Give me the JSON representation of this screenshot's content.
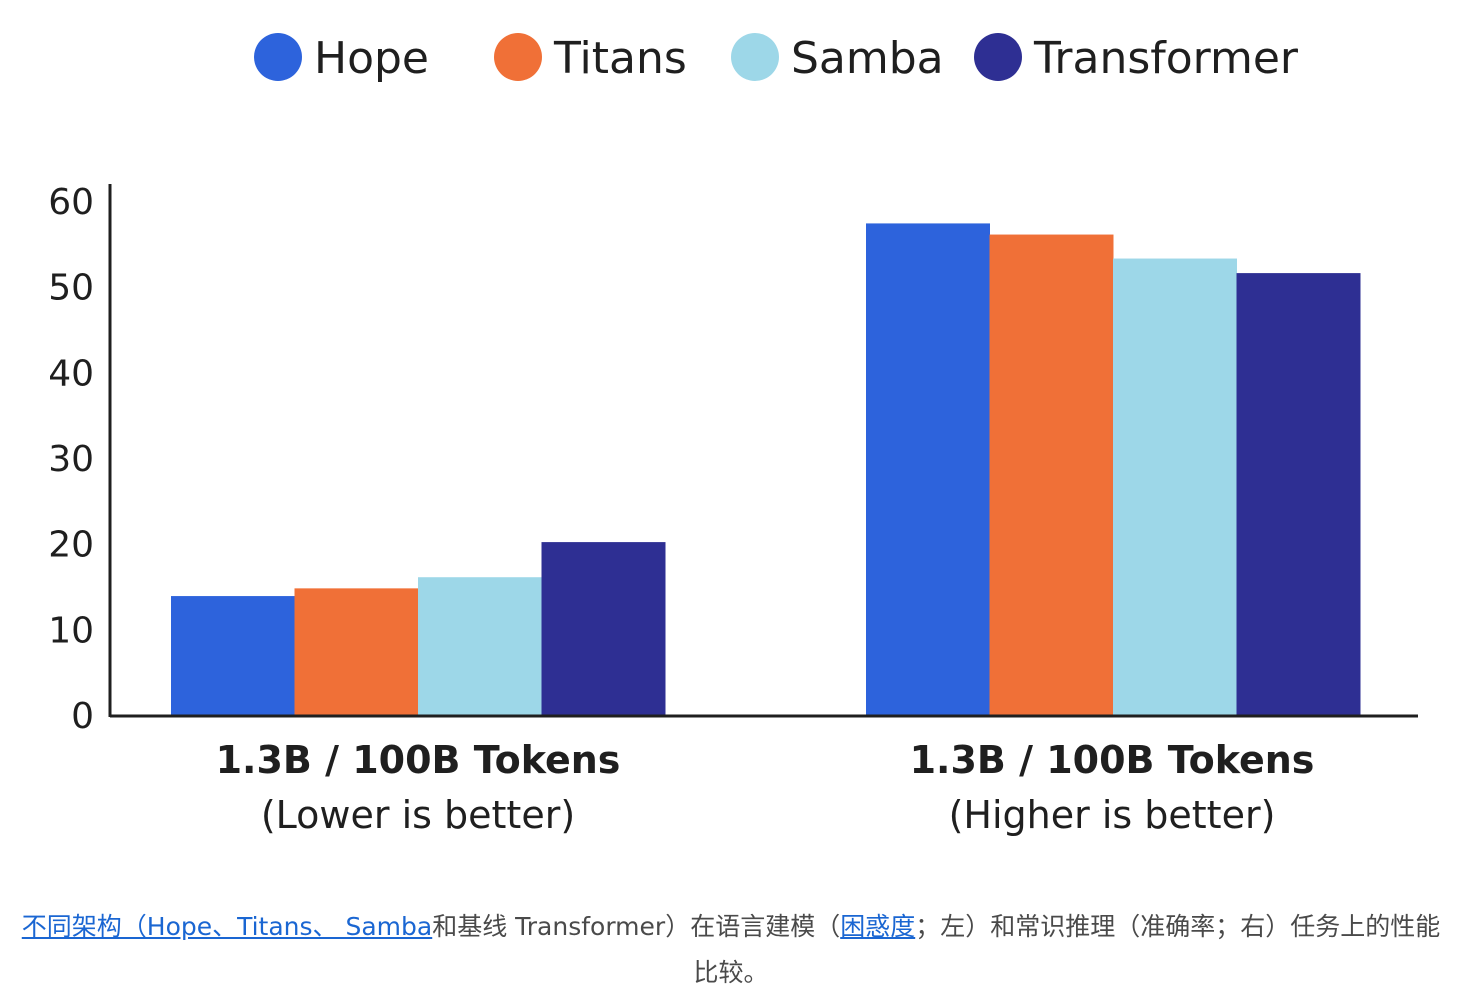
{
  "chart_data": {
    "type": "bar",
    "categories": [
      {
        "title": "1.3B / 100B Tokens",
        "subtitle": "(Lower is better)"
      },
      {
        "title": "1.3B / 100B Tokens",
        "subtitle": "(Higher is better)"
      }
    ],
    "series": [
      {
        "name": "Hope",
        "color": "#2d63dc",
        "values": [
          14.0,
          57.5
        ]
      },
      {
        "name": "Titans",
        "color": "#f07037",
        "values": [
          14.9,
          56.2
        ]
      },
      {
        "name": "Samba",
        "color": "#9dd7e8",
        "values": [
          16.2,
          53.4
        ]
      },
      {
        "name": "Transformer",
        "color": "#2e2f93",
        "values": [
          20.3,
          51.7
        ]
      }
    ],
    "yticks": [
      "0",
      "10",
      "20",
      "30",
      "40",
      "50",
      "60"
    ],
    "ylim": [
      0,
      60
    ],
    "legend_position": "top",
    "grid": false
  },
  "caption": {
    "link_architectures": "不同架构（Hope、Titans、 Samba",
    "text_baseline": "和基线 Transformer）在语言建模（",
    "link_perplexity": "困惑度",
    "text_rest": "；左）和常识推理（准确率；右）任务上的性能比较。"
  }
}
